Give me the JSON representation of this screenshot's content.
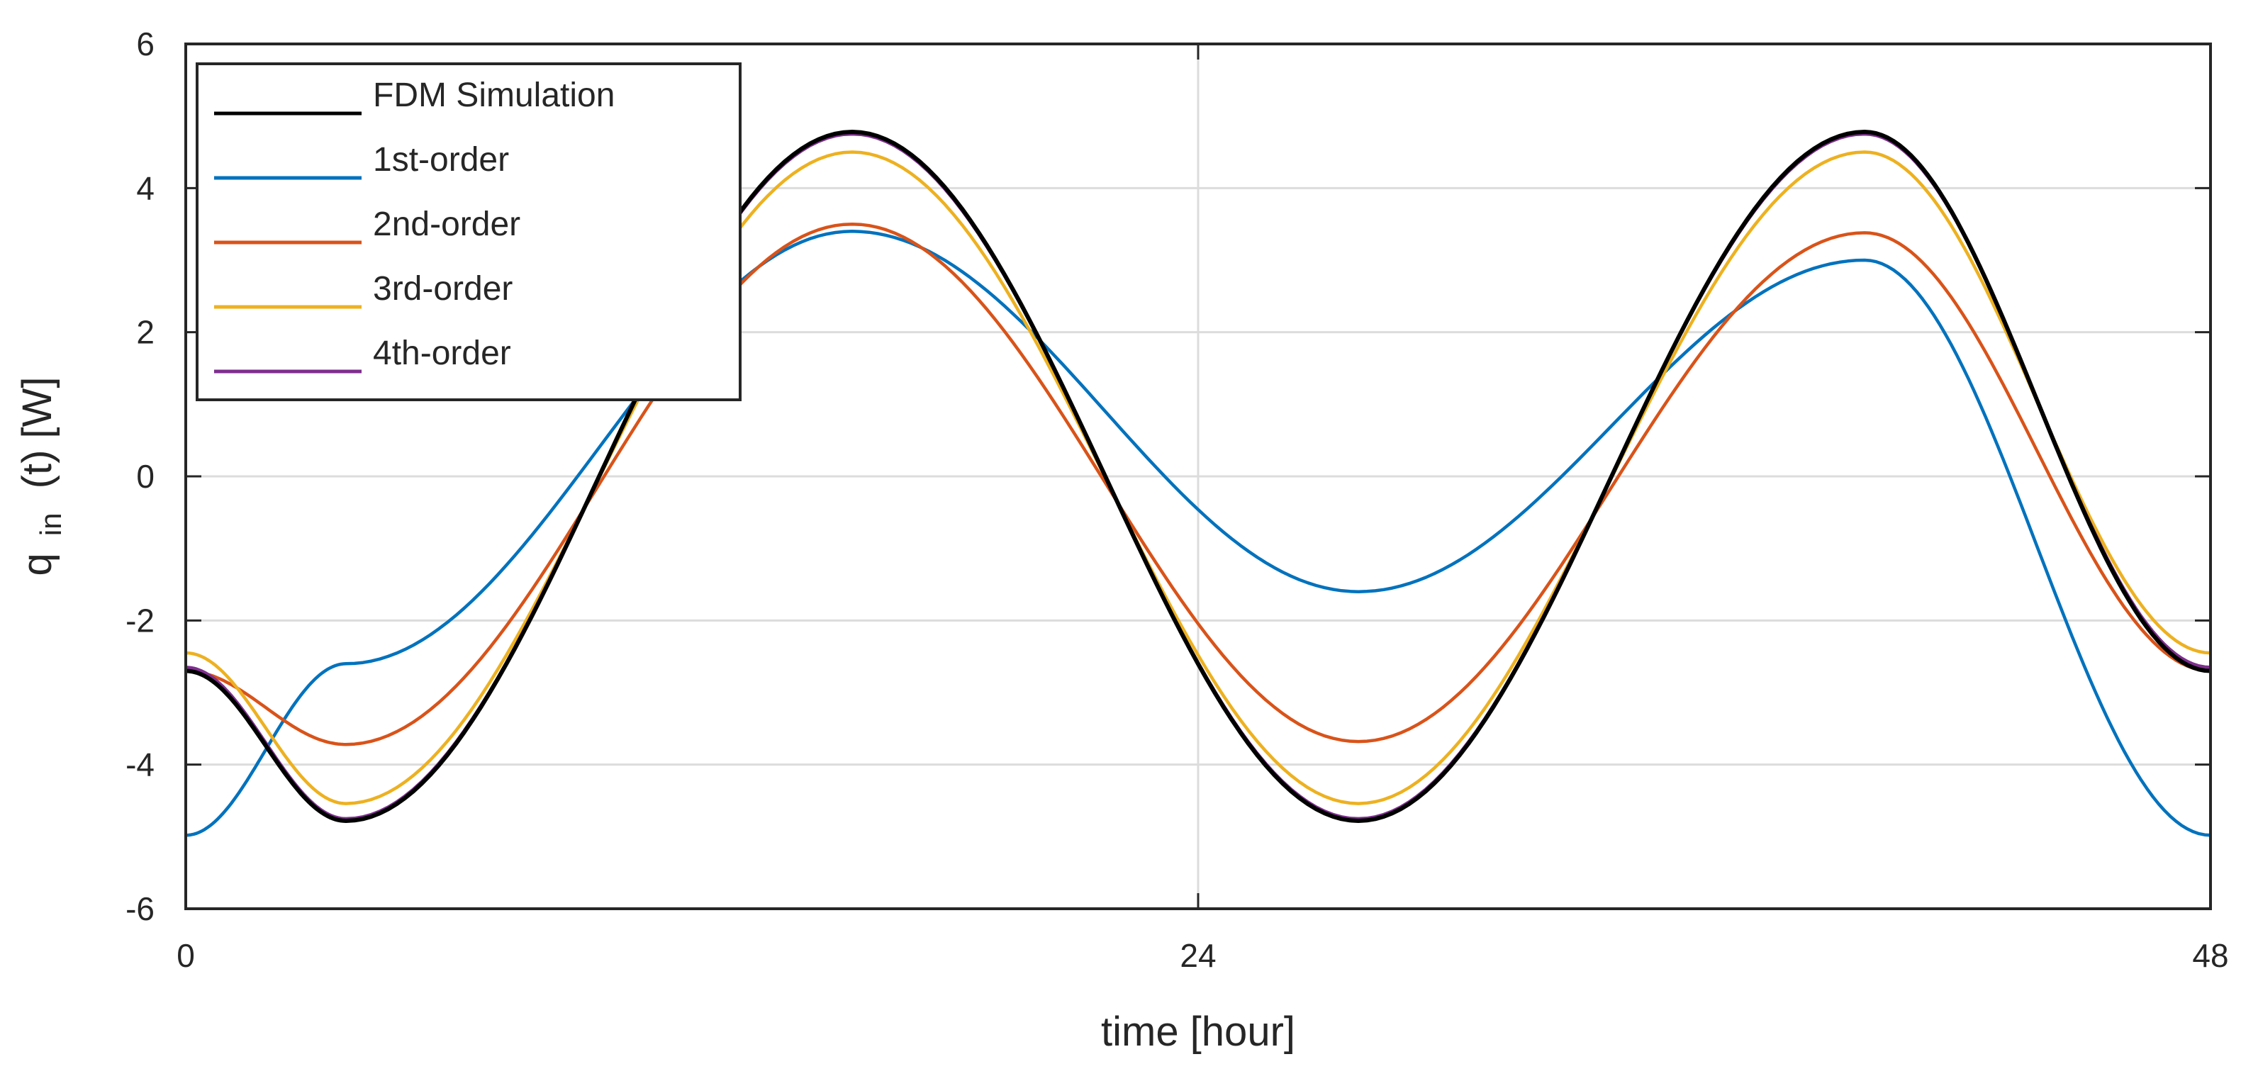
{
  "chart_data": {
    "type": "line",
    "title": "",
    "xlabel": "time [hour]",
    "ylabel": {
      "main": "q",
      "sub": "in",
      "rest": "(t) [W]"
    },
    "xlim": [
      0,
      48
    ],
    "ylim": [
      -6,
      6
    ],
    "xticks": [
      0,
      24,
      48
    ],
    "yticks": [
      -6,
      -4,
      -2,
      0,
      2,
      4,
      6
    ],
    "grid": true,
    "legend_position": "top-left",
    "x": [
      0,
      3.8,
      15.8,
      27.8,
      39.8,
      48
    ],
    "series": [
      {
        "name": "FDM Simulation",
        "color": "#000000",
        "values": [
          -2.7,
          -4.78,
          4.78,
          -4.78,
          4.78,
          -2.7
        ]
      },
      {
        "name": "1st-order",
        "color": "#0072BD",
        "values": [
          -4.98,
          -2.6,
          3.4,
          -1.6,
          3.0,
          -4.98
        ]
      },
      {
        "name": "2nd-order",
        "color": "#D95319",
        "values": [
          -2.7,
          -3.72,
          3.5,
          -3.68,
          3.38,
          -2.7
        ]
      },
      {
        "name": "3rd-order",
        "color": "#EDB120",
        "values": [
          -2.45,
          -4.54,
          4.5,
          -4.54,
          4.5,
          -2.45
        ]
      },
      {
        "name": "4th-order",
        "color": "#7E2F8E",
        "values": [
          -2.65,
          -4.75,
          4.75,
          -4.75,
          4.75,
          -2.65
        ]
      }
    ]
  }
}
